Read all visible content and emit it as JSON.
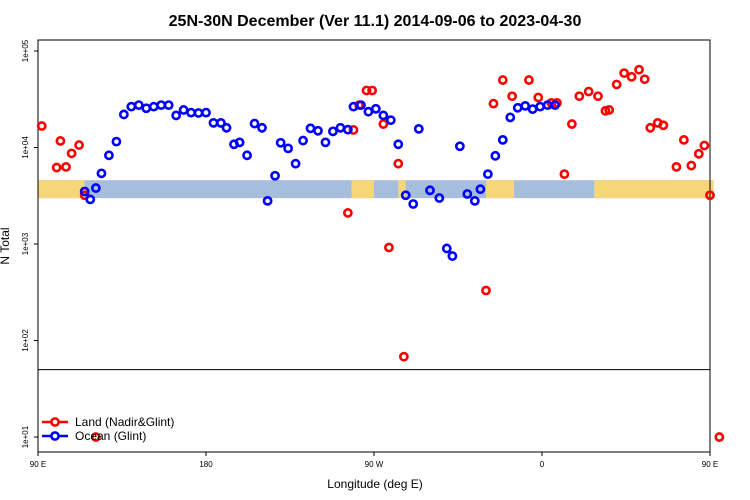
{
  "chart_data": {
    "type": "scatter",
    "title": "25N-30N December (Ver 11.1)   2014-09-06 to 2023-04-30",
    "xlabel": "Longitude (deg E)",
    "ylabel": "N Total",
    "xlim": [
      90,
      450
    ],
    "ylog": true,
    "ylim": [
      7,
      130000
    ],
    "grid": false,
    "legend_position": "bottom-left",
    "x_ticks": [
      {
        "value": 90,
        "label": "90 E"
      },
      {
        "value": 180,
        "label": "180"
      },
      {
        "value": 270,
        "label": "90 W"
      },
      {
        "value": 360,
        "label": "0"
      },
      {
        "value": 450,
        "label": "90 E"
      },
      {
        "value": 540,
        "label": "180"
      }
    ],
    "y_ticks": [
      {
        "value": 10,
        "label": "1e+01"
      },
      {
        "value": 100,
        "label": "1e+02"
      },
      {
        "value": 1000,
        "label": "1e+03"
      },
      {
        "value": 10000,
        "label": "1e+04"
      },
      {
        "value": 100000,
        "label": "1e+05"
      }
    ],
    "series": [
      {
        "name": "Land (Nadir&Glint)",
        "color": "#ff0000",
        "points": [
          [
            92,
            16700
          ],
          [
            100,
            6200
          ],
          [
            102,
            11700
          ],
          [
            105,
            6300
          ],
          [
            108,
            8700
          ],
          [
            112,
            10600
          ],
          [
            115,
            3200
          ],
          [
            121,
            10
          ],
          [
            256,
            2100
          ],
          [
            259,
            15200
          ],
          [
            262,
            27500
          ],
          [
            266,
            39000
          ],
          [
            269,
            39000
          ],
          [
            275,
            17500
          ],
          [
            278,
            920
          ],
          [
            283,
            6800
          ],
          [
            286,
            68
          ],
          [
            330,
            330
          ],
          [
            334,
            28500
          ],
          [
            339,
            50000
          ],
          [
            344,
            34000
          ],
          [
            353,
            50000
          ],
          [
            358,
            33000
          ],
          [
            365,
            29000
          ],
          [
            368,
            29000
          ],
          [
            372,
            5300
          ],
          [
            376,
            17500
          ],
          [
            380,
            34000
          ],
          [
            385,
            38000
          ],
          [
            390,
            34000
          ],
          [
            394,
            24000
          ],
          [
            396,
            24500
          ],
          [
            400,
            45000
          ],
          [
            404,
            59000
          ],
          [
            408,
            54000
          ],
          [
            412,
            64000
          ],
          [
            415,
            51000
          ],
          [
            418,
            16000
          ],
          [
            422,
            18000
          ],
          [
            425,
            17000
          ],
          [
            432,
            6300
          ],
          [
            436,
            12000
          ],
          [
            440,
            6500
          ],
          [
            444,
            8600
          ],
          [
            447,
            10500
          ],
          [
            450,
            3200
          ],
          [
            455,
            10
          ]
        ]
      },
      {
        "name": "Ocean (Glint)",
        "color": "#0000ff",
        "points": [
          [
            115,
            3500
          ],
          [
            118,
            2900
          ],
          [
            121,
            3800
          ],
          [
            124,
            5400
          ],
          [
            128,
            8300
          ],
          [
            132,
            11500
          ],
          [
            136,
            22000
          ],
          [
            140,
            26500
          ],
          [
            144,
            27500
          ],
          [
            148,
            25500
          ],
          [
            152,
            26500
          ],
          [
            156,
            27500
          ],
          [
            160,
            27500
          ],
          [
            164,
            21500
          ],
          [
            168,
            24500
          ],
          [
            172,
            23000
          ],
          [
            176,
            22800
          ],
          [
            180,
            23000
          ],
          [
            184,
            18000
          ],
          [
            188,
            18000
          ],
          [
            191,
            16000
          ],
          [
            195,
            10800
          ],
          [
            198,
            11300
          ],
          [
            202,
            8300
          ],
          [
            206,
            17700
          ],
          [
            210,
            16000
          ],
          [
            213,
            2800
          ],
          [
            217,
            5100
          ],
          [
            220,
            11200
          ],
          [
            224,
            9800
          ],
          [
            228,
            6800
          ],
          [
            232,
            11800
          ],
          [
            236,
            15800
          ],
          [
            240,
            14900
          ],
          [
            244,
            11300
          ],
          [
            248,
            14700
          ],
          [
            252,
            16000
          ],
          [
            256,
            15300
          ],
          [
            259,
            26500
          ],
          [
            263,
            27500
          ],
          [
            267,
            23500
          ],
          [
            271,
            25200
          ],
          [
            275,
            21500
          ],
          [
            279,
            19200
          ],
          [
            283,
            10800
          ],
          [
            287,
            3200
          ],
          [
            291,
            2600
          ],
          [
            294,
            15600
          ],
          [
            300,
            3600
          ],
          [
            305,
            3000
          ],
          [
            309,
            900
          ],
          [
            312,
            750
          ],
          [
            316,
            10300
          ],
          [
            320,
            3300
          ],
          [
            324,
            2800
          ],
          [
            327,
            3700
          ],
          [
            331,
            5300
          ],
          [
            335,
            8200
          ],
          [
            339,
            12000
          ],
          [
            343,
            20500
          ],
          [
            347,
            25800
          ],
          [
            351,
            27000
          ],
          [
            355,
            25000
          ],
          [
            359,
            26500
          ],
          [
            363,
            27500
          ],
          [
            367,
            27500
          ]
        ]
      }
    ],
    "break": {
      "type": "threshold_line",
      "value": 50
    }
  }
}
